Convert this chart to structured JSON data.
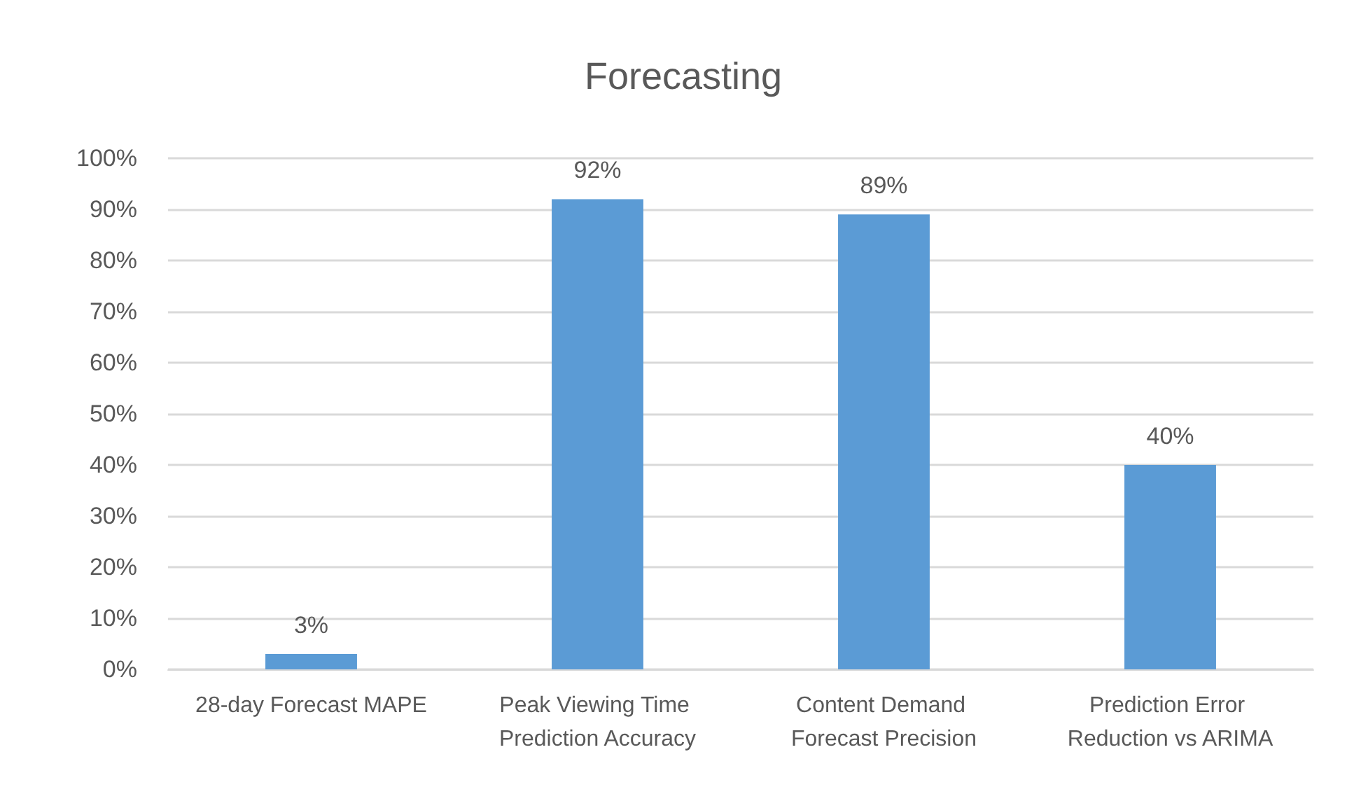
{
  "chart_data": {
    "type": "bar",
    "title": "Forecasting",
    "categories": [
      "28-day Forecast MAPE",
      "Peak Viewing Time Prediction Accuracy",
      "Content Demand Forecast Precision",
      "Prediction Error Reduction vs ARIMA"
    ],
    "values": [
      3,
      92,
      89,
      40
    ],
    "value_labels": [
      "3%",
      "92%",
      "89%",
      "40%"
    ],
    "color": "#5b9bd5",
    "ylim": [
      0,
      100
    ],
    "yticks": [
      {
        "value": 0,
        "label": "0%"
      },
      {
        "value": 10,
        "label": "10%"
      },
      {
        "value": 20,
        "label": "20%"
      },
      {
        "value": 30,
        "label": "30%"
      },
      {
        "value": 40,
        "label": "40%"
      },
      {
        "value": 50,
        "label": "50%"
      },
      {
        "value": 60,
        "label": "60%"
      },
      {
        "value": 70,
        "label": "70%"
      },
      {
        "value": 80,
        "label": "80%"
      },
      {
        "value": 90,
        "label": "90%"
      },
      {
        "value": 100,
        "label": "100%"
      }
    ],
    "grid": "y"
  }
}
